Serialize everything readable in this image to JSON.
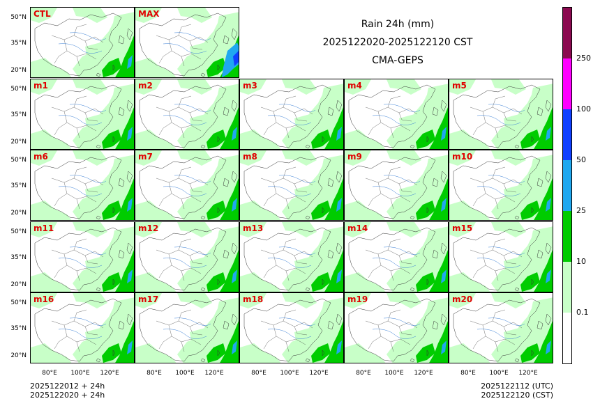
{
  "title": {
    "line1": "Rain 24h (mm)",
    "line2": "2025122020-2025122120 CST",
    "line3": "CMA-GEPS"
  },
  "panels": [
    "CTL",
    "MAX",
    "m1",
    "m2",
    "m3",
    "m4",
    "m5",
    "m6",
    "m7",
    "m8",
    "m9",
    "m10",
    "m11",
    "m12",
    "m13",
    "m14",
    "m15",
    "m16",
    "m17",
    "m18",
    "m19",
    "m20"
  ],
  "lat_labels": [
    "50°N",
    "35°N",
    "20°N"
  ],
  "lon_labels": [
    "80°E",
    "100°E",
    "120°E"
  ],
  "colorbar": {
    "levels": [
      "0.1",
      "10",
      "25",
      "50",
      "100",
      "250"
    ],
    "colors": [
      "#ffffff",
      "#c8ffc8",
      "#00cc00",
      "#20a8f0",
      "#1040ff",
      "#ff00ff",
      "#8b0a50"
    ]
  },
  "footer": {
    "left_line1": "2025122012 + 24h",
    "left_line2": "2025122020 + 24h",
    "right_line1": "2025122112 (UTC)",
    "right_line2": "2025122120 (CST)"
  }
}
